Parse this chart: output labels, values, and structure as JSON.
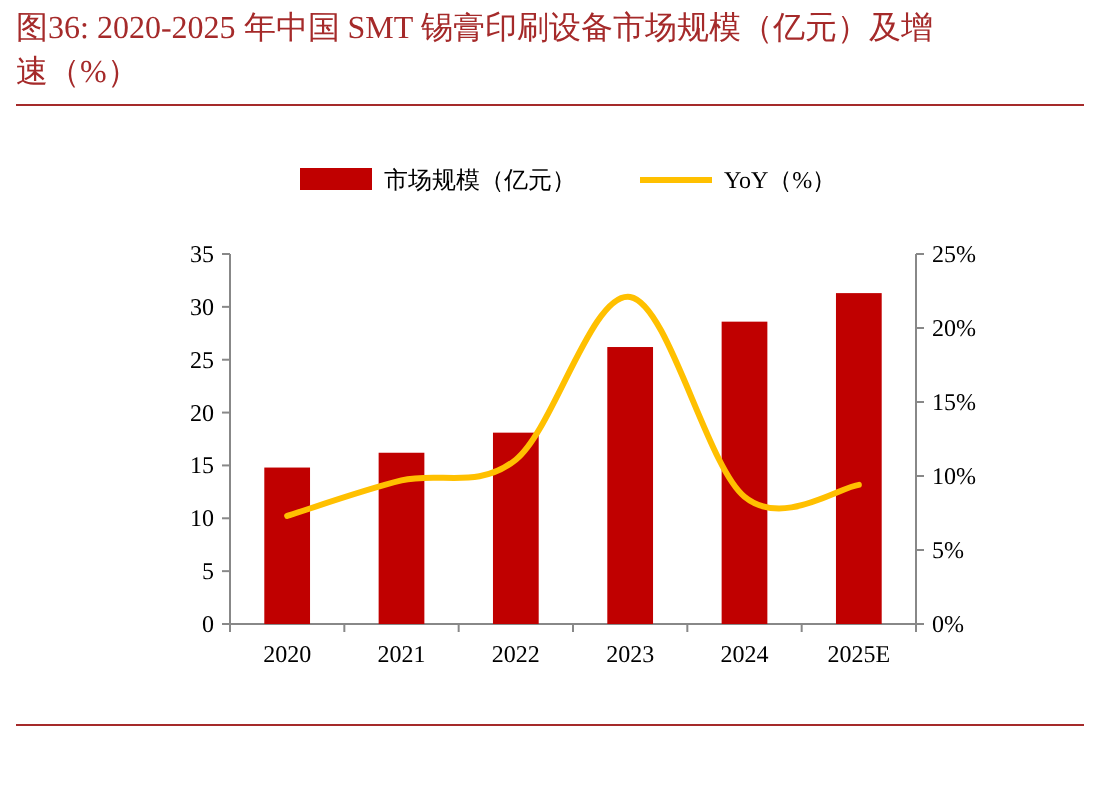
{
  "chart_data": {
    "type": "bar",
    "title": "图36:   2020-2025 年中国 SMT 锡膏印刷设备市场规模（亿元）及增速（%）",
    "categories": [
      "2020",
      "2021",
      "2022",
      "2023",
      "2024",
      "2025E"
    ],
    "series": [
      {
        "name": "市场规模（亿元）",
        "color": "#c00000",
        "values": [
          14.8,
          16.2,
          18.1,
          26.2,
          28.6,
          31.3
        ]
      },
      {
        "name": "YoY（%）",
        "color": "#ffc000",
        "type": "line",
        "axis": "y2",
        "values": [
          7.3,
          9.7,
          11.1,
          22.1,
          8.6,
          9.4
        ]
      }
    ],
    "ylim": [
      0,
      35
    ],
    "yticks": [
      0,
      5,
      10,
      15,
      20,
      25,
      30,
      35
    ],
    "y2lim": [
      0,
      25
    ],
    "y2ticks": [
      {
        "value": 0,
        "label": "0%"
      },
      {
        "value": 5,
        "label": "5%"
      },
      {
        "value": 10,
        "label": "10%"
      },
      {
        "value": 15,
        "label": "15%"
      },
      {
        "value": 20,
        "label": "20%"
      },
      {
        "value": 25,
        "label": "25%"
      }
    ],
    "legend": "top",
    "grid": false
  }
}
